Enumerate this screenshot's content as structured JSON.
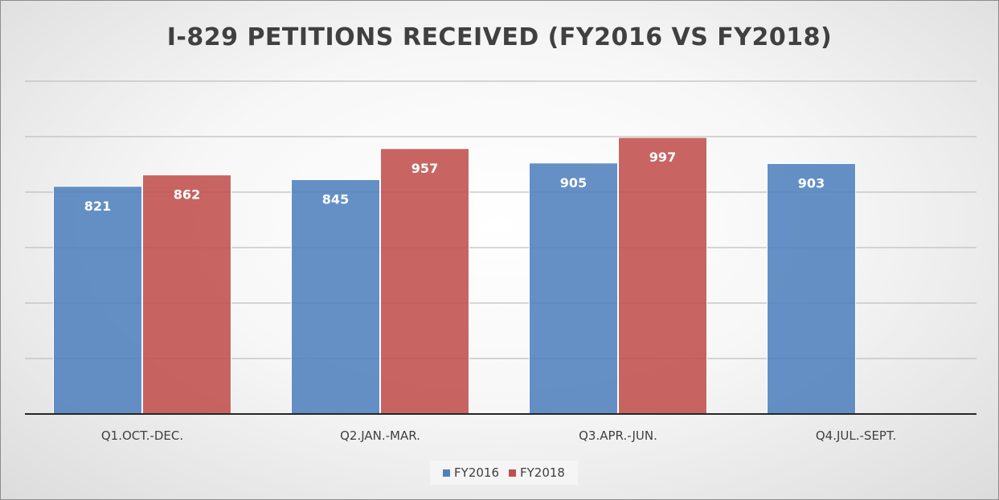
{
  "chart_data": {
    "type": "bar",
    "title": "I-829 PETITIONS RECEIVED (FY2016 VS FY2018)",
    "xlabel": "",
    "ylabel": "",
    "categories": [
      "Q1.OCT.-DEC.",
      "Q2.JAN.-MAR.",
      "Q3.APR.-JUN.",
      "Q4.JUL.-SEPT."
    ],
    "series": [
      {
        "name": "FY2016",
        "color": "#4f81bd",
        "values": [
          821,
          845,
          905,
          903
        ]
      },
      {
        "name": "FY2018",
        "color": "#c0504d",
        "values": [
          862,
          957,
          997,
          null
        ]
      }
    ],
    "ylim": [
      0,
      1200
    ],
    "grid": true,
    "legend_position": "bottom"
  }
}
